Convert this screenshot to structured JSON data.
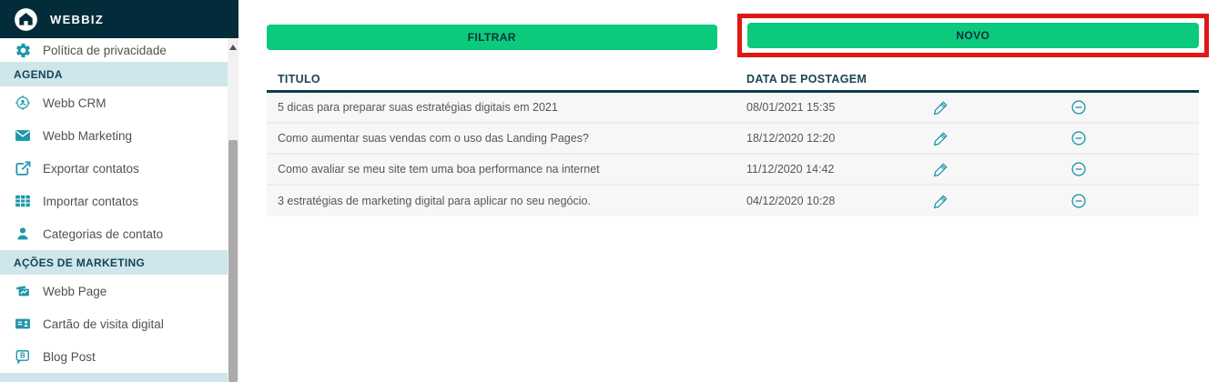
{
  "brand": {
    "name": "WEBBIZ"
  },
  "sidebar": {
    "entries": [
      {
        "type": "item",
        "label": "Política de privacidade",
        "icon": "gear-icon"
      },
      {
        "type": "section",
        "label": "AGENDA"
      },
      {
        "type": "item",
        "label": "Webb CRM",
        "icon": "crm-target-person-icon"
      },
      {
        "type": "item",
        "label": "Webb Marketing",
        "icon": "envelope-icon"
      },
      {
        "type": "item",
        "label": "Exportar contatos",
        "icon": "export-icon"
      },
      {
        "type": "item",
        "label": "Importar contatos",
        "icon": "table-icon"
      },
      {
        "type": "item",
        "label": "Categorias de contato",
        "icon": "person-icon"
      },
      {
        "type": "section",
        "label": "AÇÕES DE MARKETING"
      },
      {
        "type": "item",
        "label": "Webb Page",
        "icon": "webpage-cards-icon"
      },
      {
        "type": "item",
        "label": "Cartão de visita digital",
        "icon": "business-card-icon"
      },
      {
        "type": "item",
        "label": "Blog Post",
        "icon": "blog-bubble-icon"
      }
    ]
  },
  "toolbar": {
    "filtrar_label": "FILTRAR",
    "novo_label": "NOVO"
  },
  "table": {
    "columns": {
      "title": "TITULO",
      "date": "DATA DE POSTAGEM"
    },
    "rows": [
      {
        "title": "5 dicas para preparar suas estratégias digitais em 2021",
        "date": "08/01/2021 15:35"
      },
      {
        "title": "Como aumentar suas vendas com o uso das Landing Pages?",
        "date": "18/12/2020 12:20"
      },
      {
        "title": "Como avaliar se meu site tem uma boa performance na internet",
        "date": "11/12/2020 14:42"
      },
      {
        "title": "3 estratégias de marketing digital para aplicar no seu negócio.",
        "date": "04/12/2020 10:28"
      }
    ],
    "row_action_icons": {
      "edit": "pencil-icon",
      "remove": "minus-circle-icon"
    }
  },
  "colors": {
    "header_dark": "#032c3a",
    "accent_teal": "#1e96ab",
    "button_green": "#0cca7c",
    "annotation_red": "#e01717",
    "section_bg": "#cfe7ea",
    "section_text": "#16445a",
    "table_header_text": "#1c4456",
    "row_bg": "#f7f7f7"
  }
}
